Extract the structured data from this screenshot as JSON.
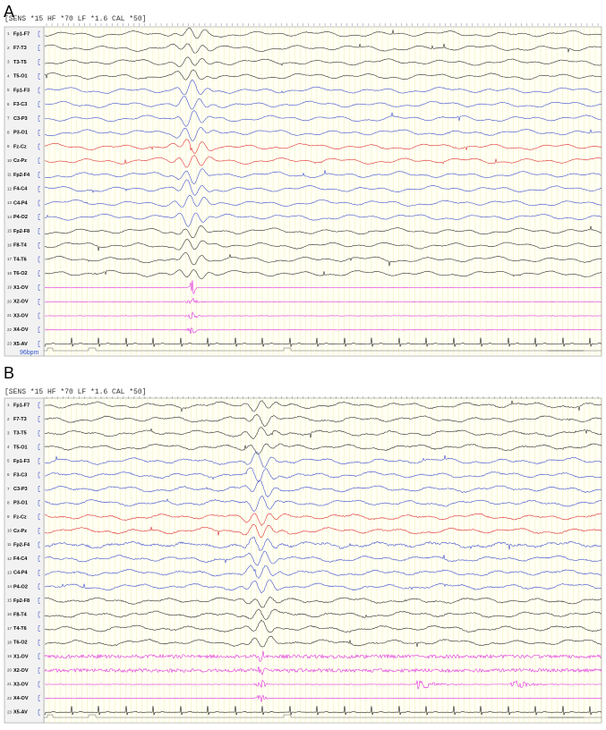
{
  "panels": [
    {
      "label": "A",
      "header": "[SENS *15  HF *70  LF *1.6  CAL *50]",
      "channels": [
        {
          "number": "1",
          "name": "Fp1-F7"
        },
        {
          "number": "2",
          "name": "F7-T3"
        },
        {
          "number": "3",
          "name": "T3-T5"
        },
        {
          "number": "4",
          "name": "T5-O1"
        },
        {
          "number": "5",
          "name": "Fp1-F3"
        },
        {
          "number": "6",
          "name": "F3-C3"
        },
        {
          "number": "7",
          "name": "C3-P3"
        },
        {
          "number": "8",
          "name": "P3-O1"
        },
        {
          "number": "9",
          "name": "Fz-Cz"
        },
        {
          "number": "10",
          "name": "Cz-Pz"
        },
        {
          "number": "11",
          "name": "Fp2-F4"
        },
        {
          "number": "12",
          "name": "F4-C4"
        },
        {
          "number": "13",
          "name": "C4-P4"
        },
        {
          "number": "14",
          "name": "P4-O2"
        },
        {
          "number": "15",
          "name": "Fp2-F8"
        },
        {
          "number": "16",
          "name": "F8-T4"
        },
        {
          "number": "17",
          "name": "T4-T6"
        },
        {
          "number": "18",
          "name": "T6-O2"
        },
        {
          "number": "19",
          "name": "X1-OV"
        },
        {
          "number": "20",
          "name": "X2-OV"
        },
        {
          "number": "21",
          "name": "X3-OV"
        },
        {
          "number": "22",
          "name": "X4-OV"
        },
        {
          "number": "23",
          "name": "X5-AV"
        }
      ],
      "note": "96bpm"
    },
    {
      "label": "B",
      "header": "[SENS *15  HF *70  LF *1.6  CAL *50]",
      "channels": [
        {
          "number": "1",
          "name": "Fp1-F7"
        },
        {
          "number": "2",
          "name": "F7-T3"
        },
        {
          "number": "3",
          "name": "T3-T5"
        },
        {
          "number": "4",
          "name": "T5-O1"
        },
        {
          "number": "5",
          "name": "Fp1-F3"
        },
        {
          "number": "6",
          "name": "F3-C3"
        },
        {
          "number": "7",
          "name": "C3-P3"
        },
        {
          "number": "8",
          "name": "P3-O1"
        },
        {
          "number": "9",
          "name": "Fz-Cz"
        },
        {
          "number": "10",
          "name": "Cz-Pz"
        },
        {
          "number": "11",
          "name": "Fp2-F4"
        },
        {
          "number": "12",
          "name": "F4-C4"
        },
        {
          "number": "13",
          "name": "C4-P4"
        },
        {
          "number": "14",
          "name": "P4-O2"
        },
        {
          "number": "15",
          "name": "Fp2-F8"
        },
        {
          "number": "16",
          "name": "F8-T4"
        },
        {
          "number": "17",
          "name": "T4-T6"
        },
        {
          "number": "18",
          "name": "T6-O2"
        },
        {
          "number": "19",
          "name": "X1-OV"
        },
        {
          "number": "20",
          "name": "X2-OV"
        },
        {
          "number": "21",
          "name": "X3-OV"
        },
        {
          "number": "22",
          "name": "X4-OV"
        },
        {
          "number": "23",
          "name": "X5-AV"
        }
      ]
    }
  ]
}
